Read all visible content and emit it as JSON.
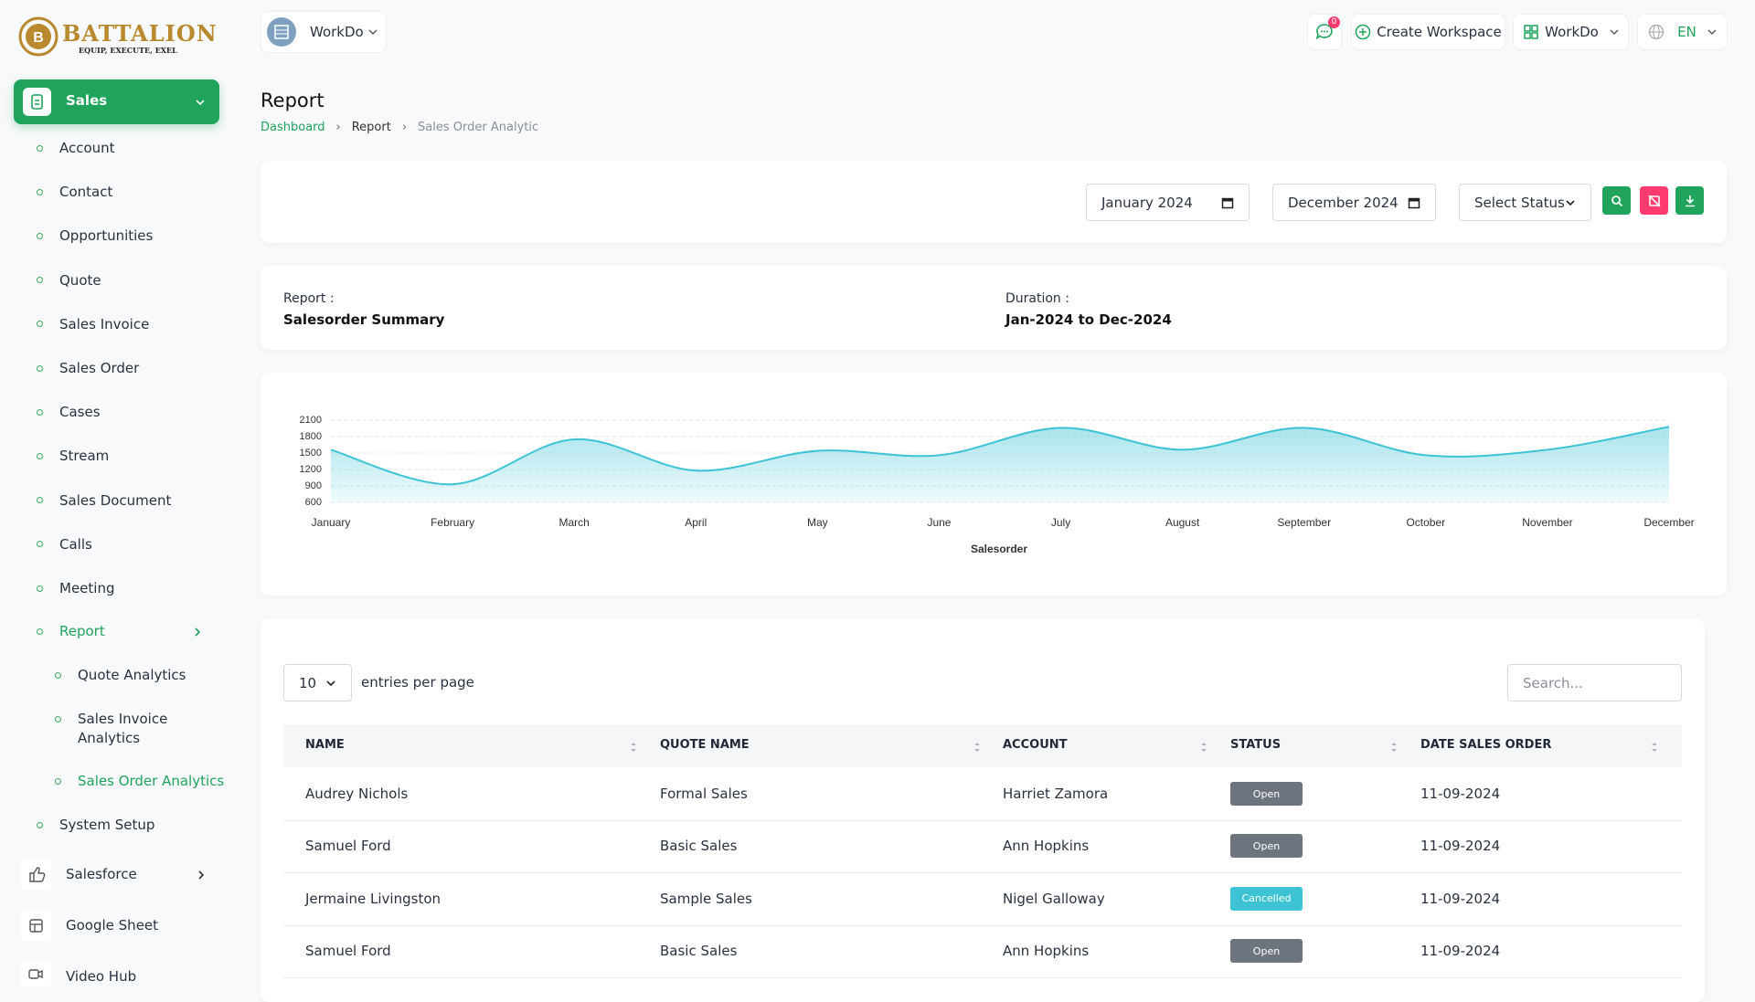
{
  "brand": {
    "name": "BATTALION",
    "tagline": "EQUIP, EXECUTE, EXEL"
  },
  "sidebar": {
    "sales": "Sales",
    "sales_items": [
      "Account",
      "Contact",
      "Opportunities",
      "Quote",
      "Sales Invoice",
      "Sales Order",
      "Cases",
      "Stream",
      "Sales Document",
      "Calls",
      "Meeting"
    ],
    "report": "Report",
    "report_items": [
      "Quote Analytics",
      "Sales Invoice Analytics",
      "Sales Order Analytics"
    ],
    "system_setup": "System Setup",
    "modules": [
      "Salesforce",
      "Google Sheet",
      "Video Hub"
    ]
  },
  "header": {
    "workspace": "WorkDo",
    "notifications": 0,
    "create_workspace": "Create Workspace",
    "user_workspace": "WorkDo",
    "language": "EN"
  },
  "page": {
    "title": "Report",
    "breadcrumb": [
      "Dashboard",
      "Report",
      "Sales Order Analytic"
    ]
  },
  "filters": {
    "start_month": "January 2024",
    "end_month": "December 2024",
    "status": "Select Status"
  },
  "summary": {
    "report_label": "Report :",
    "report": "Salesorder Summary",
    "duration_label": "Duration :",
    "duration": "Jan-2024 to Dec-2024"
  },
  "chart_data": {
    "type": "area",
    "x_label": "Salesorder",
    "categories": [
      "January",
      "February",
      "March",
      "April",
      "May",
      "June",
      "July",
      "August",
      "September",
      "October",
      "November",
      "December"
    ],
    "values": [
      1560,
      930,
      1750,
      1180,
      1540,
      1460,
      1960,
      1560,
      1960,
      1460,
      1560,
      1980
    ],
    "color": "#3ec3d5",
    "ylim": [
      600,
      2100
    ],
    "yticks": [
      600,
      900,
      1200,
      1500,
      1800,
      2100
    ],
    "grid": true
  },
  "table": {
    "page_size": 10,
    "entries_label": "entries per page",
    "search_placeholder": "Search...",
    "columns": [
      "NAME",
      "QUOTE NAME",
      "ACCOUNT",
      "STATUS",
      "DATE SALES ORDER"
    ],
    "rows": [
      {
        "name": "Audrey Nichols",
        "quote": "Formal Sales",
        "account": "Harriet Zamora",
        "status": "Open",
        "status_color": "#6c757d",
        "date": "11-09-2024"
      },
      {
        "name": "Samuel Ford",
        "quote": "Basic Sales",
        "account": "Ann Hopkins",
        "status": "Open",
        "status_color": "#6c757d",
        "date": "11-09-2024"
      },
      {
        "name": "Jermaine Livingston",
        "quote": "Sample Sales",
        "account": "Nigel Galloway",
        "status": "Cancelled",
        "status_color": "#3ec3d5",
        "date": "11-09-2024"
      },
      {
        "name": "Samuel Ford",
        "quote": "Basic Sales",
        "account": "Ann Hopkins",
        "status": "Open",
        "status_color": "#6c757d",
        "date": "11-09-2024"
      }
    ]
  }
}
